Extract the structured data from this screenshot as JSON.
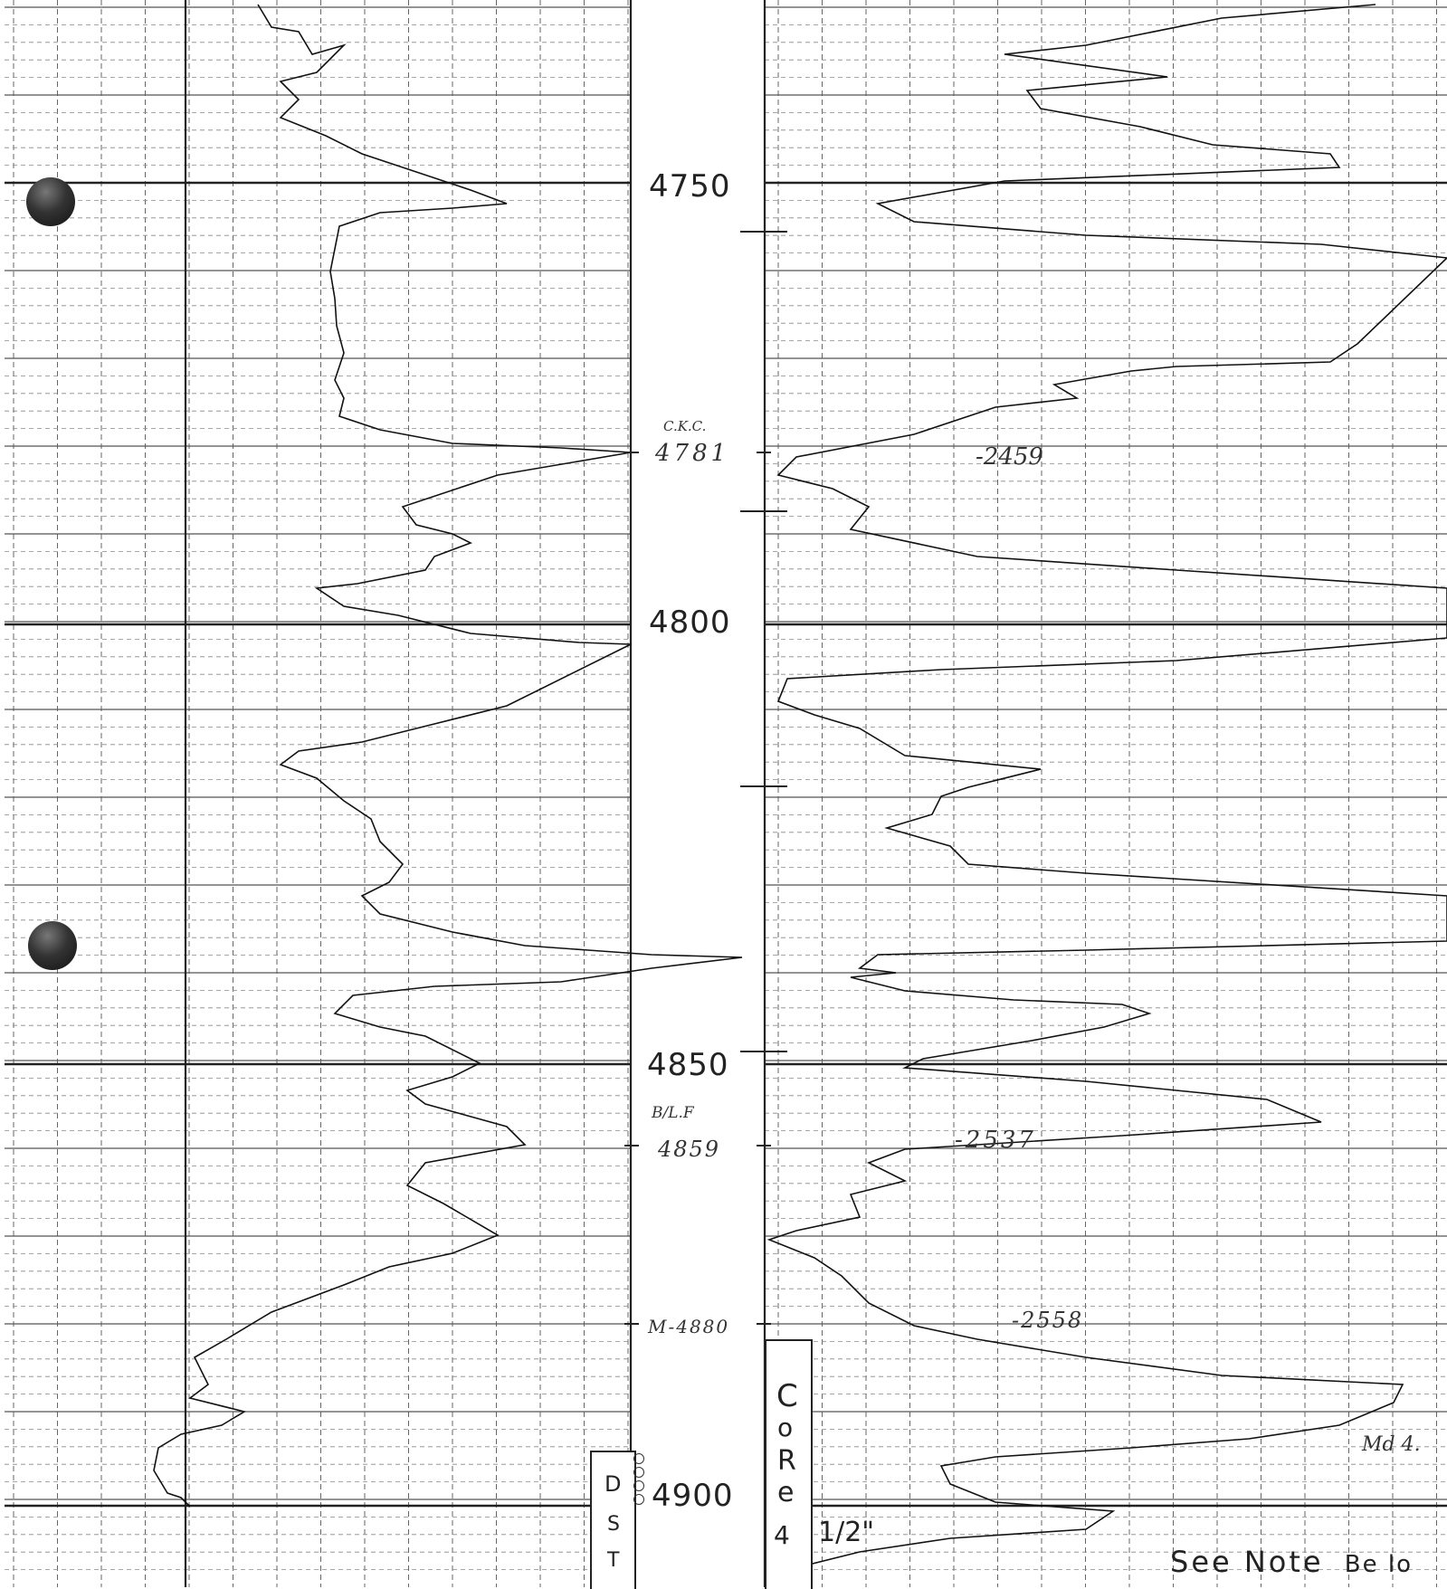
{
  "depth_track": {
    "labels": [
      "4750",
      "4800",
      "4850",
      "4900"
    ]
  },
  "picks": [
    {
      "top_label": "C.K.C.",
      "depth": "4781",
      "subsea": "-2459"
    },
    {
      "top_label": "B/L.F",
      "depth": "4859",
      "subsea": "-2537"
    },
    {
      "depth": "M-4880",
      "subsea": "-2558"
    }
  ],
  "core": {
    "letters": [
      "C",
      "o",
      "R",
      "e"
    ],
    "size_number": "4",
    "size_fraction": "1/2\""
  },
  "dst": {
    "letters": [
      "D",
      "S",
      "T"
    ]
  },
  "notes": {
    "see_note": "See Note",
    "below": "Be lo",
    "md": "Md 4."
  }
}
